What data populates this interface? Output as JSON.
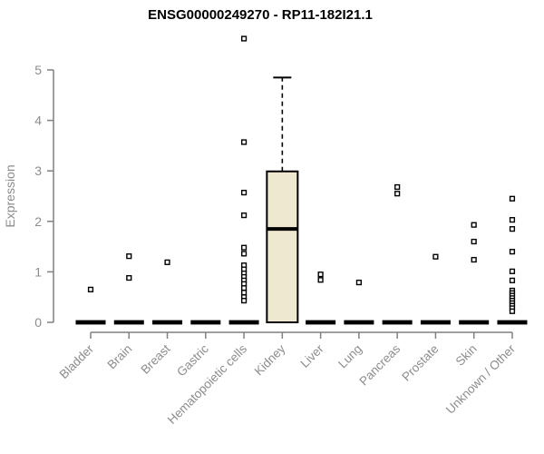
{
  "chart_data": {
    "type": "boxplot",
    "title": "ENSG00000249270 - RP11-182I21.1",
    "xlabel": "",
    "ylabel": "Expression",
    "ylim": [
      0,
      5
    ],
    "yticks": [
      "0",
      "1",
      "2",
      "3",
      "4",
      "5"
    ],
    "grid": false,
    "legend": "none",
    "categories": [
      "Bladder",
      "Brain",
      "Breast",
      "Gastric",
      "Hematopoietic cells",
      "Kidney",
      "Liver",
      "Lung",
      "Pancreas",
      "Prostate",
      "Skin",
      "Unknown / Other"
    ],
    "boxes": [
      {
        "category": "Bladder",
        "q1": 0,
        "median": 0,
        "q3": 0,
        "whisker_low": 0,
        "whisker_high": 0,
        "outliers": [
          0.65
        ]
      },
      {
        "category": "Brain",
        "q1": 0,
        "median": 0,
        "q3": 0,
        "whisker_low": 0,
        "whisker_high": 0,
        "outliers": [
          1.31,
          0.88
        ]
      },
      {
        "category": "Breast",
        "q1": 0,
        "median": 0,
        "q3": 0,
        "whisker_low": 0,
        "whisker_high": 0,
        "outliers": [
          1.19
        ]
      },
      {
        "category": "Gastric",
        "q1": 0,
        "median": 0,
        "q3": 0,
        "whisker_low": 0,
        "whisker_high": 0,
        "outliers": []
      },
      {
        "category": "Hematopoietic cells",
        "q1": 0,
        "median": 0,
        "q3": 0,
        "whisker_low": 0,
        "whisker_high": 0,
        "outliers": [
          5.62,
          3.57,
          2.57,
          2.12,
          1.48,
          1.36,
          1.13,
          1.05,
          0.97,
          0.9,
          0.83,
          0.76,
          0.68,
          0.59,
          0.5,
          0.43
        ]
      },
      {
        "category": "Kidney",
        "q1": 0,
        "median": 1.85,
        "q3": 2.99,
        "whisker_low": 0,
        "whisker_high": 4.85,
        "outliers": []
      },
      {
        "category": "Liver",
        "q1": 0,
        "median": 0,
        "q3": 0,
        "whisker_low": 0,
        "whisker_high": 0,
        "outliers": [
          0.95,
          0.84
        ]
      },
      {
        "category": "Lung",
        "q1": 0,
        "median": 0,
        "q3": 0,
        "whisker_low": 0,
        "whisker_high": 0,
        "outliers": [
          0.79
        ]
      },
      {
        "category": "Pancreas",
        "q1": 0,
        "median": 0,
        "q3": 0,
        "whisker_low": 0,
        "whisker_high": 0,
        "outliers": [
          2.68,
          2.55
        ]
      },
      {
        "category": "Prostate",
        "q1": 0,
        "median": 0,
        "q3": 0,
        "whisker_low": 0,
        "whisker_high": 0,
        "outliers": [
          1.3
        ]
      },
      {
        "category": "Skin",
        "q1": 0,
        "median": 0,
        "q3": 0,
        "whisker_low": 0,
        "whisker_high": 0,
        "outliers": [
          1.93,
          1.6,
          1.24
        ]
      },
      {
        "category": "Unknown / Other",
        "q1": 0,
        "median": 0,
        "q3": 0,
        "whisker_low": 0,
        "whisker_high": 0,
        "outliers": [
          2.45,
          2.03,
          1.85,
          1.4,
          1.01,
          0.83,
          0.63,
          0.58,
          0.53,
          0.48,
          0.43,
          0.38,
          0.33,
          0.28,
          0.22
        ]
      }
    ],
    "colors": {
      "box_fill": "#ede8cf",
      "box_border": "#000000",
      "flat_box": "#000000",
      "outlier_stroke": "#000000",
      "outlier_fill": "#ffffff",
      "axis_line": "#808080",
      "axis_text": "#8c8c8c",
      "title_text": "#000000"
    }
  }
}
